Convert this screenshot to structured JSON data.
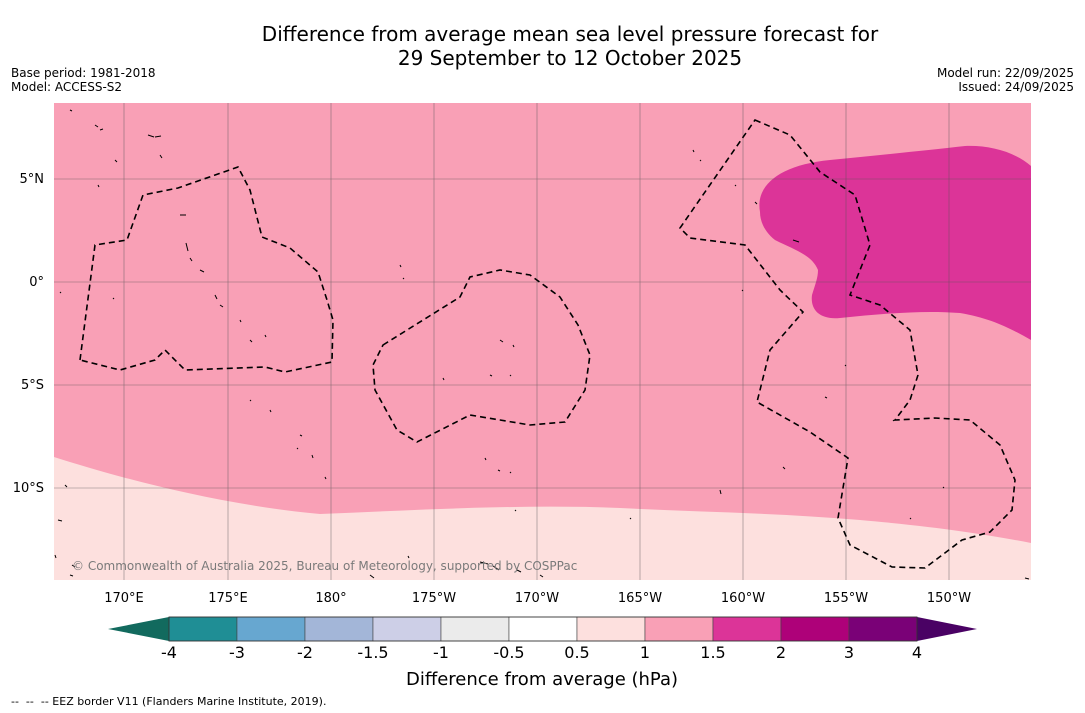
{
  "title": {
    "line1": "Difference from average mean sea level pressure forecast for",
    "line2": "29 September to 12 October 2025"
  },
  "meta_left": {
    "base_period": "Base period: 1981-2018",
    "model": "Model: ACCESS-S2"
  },
  "meta_right": {
    "model_run": "Model run: 22/09/2025",
    "issued": "Issued: 24/09/2025"
  },
  "map": {
    "copyright": "© Commonwealth of Australia 2025, Bureau of Meteorology, supported by COSPPac",
    "lat_labels": [
      "5°N",
      "0°",
      "5°S",
      "10°S"
    ],
    "lon_labels": [
      "170°E",
      "175°E",
      "180°",
      "175°W",
      "170°W",
      "165°W",
      "160°W",
      "155°W",
      "150°W"
    ],
    "colors": {
      "shade_0_5_to_1": "#fde0de",
      "shade_1_to_1_5": "#f9a0b6",
      "shade_1_5_to_2": "#dc3498",
      "coast": "#000000",
      "eez": "#000000",
      "grid": "#555555"
    }
  },
  "colorbar": {
    "title": "Difference from average (hPa)",
    "tick_labels": [
      "-4",
      "-3",
      "-2",
      "-1.5",
      "-1",
      "-0.5",
      "0.5",
      "1",
      "1.5",
      "2",
      "3",
      "4"
    ],
    "under_color": "#126a5e",
    "over_color": "#4a0264",
    "bins": [
      "#1f8e95",
      "#67a7d0",
      "#a3b6d8",
      "#cdcfe7",
      "#ebebeb",
      "#ffffff",
      "#fde0de",
      "#f9a0b6",
      "#dc3498",
      "#ae0179",
      "#7a0177"
    ]
  },
  "footnote": "--  --  -- EEZ border V11 (Flanders Marine Institute, 2019)."
}
